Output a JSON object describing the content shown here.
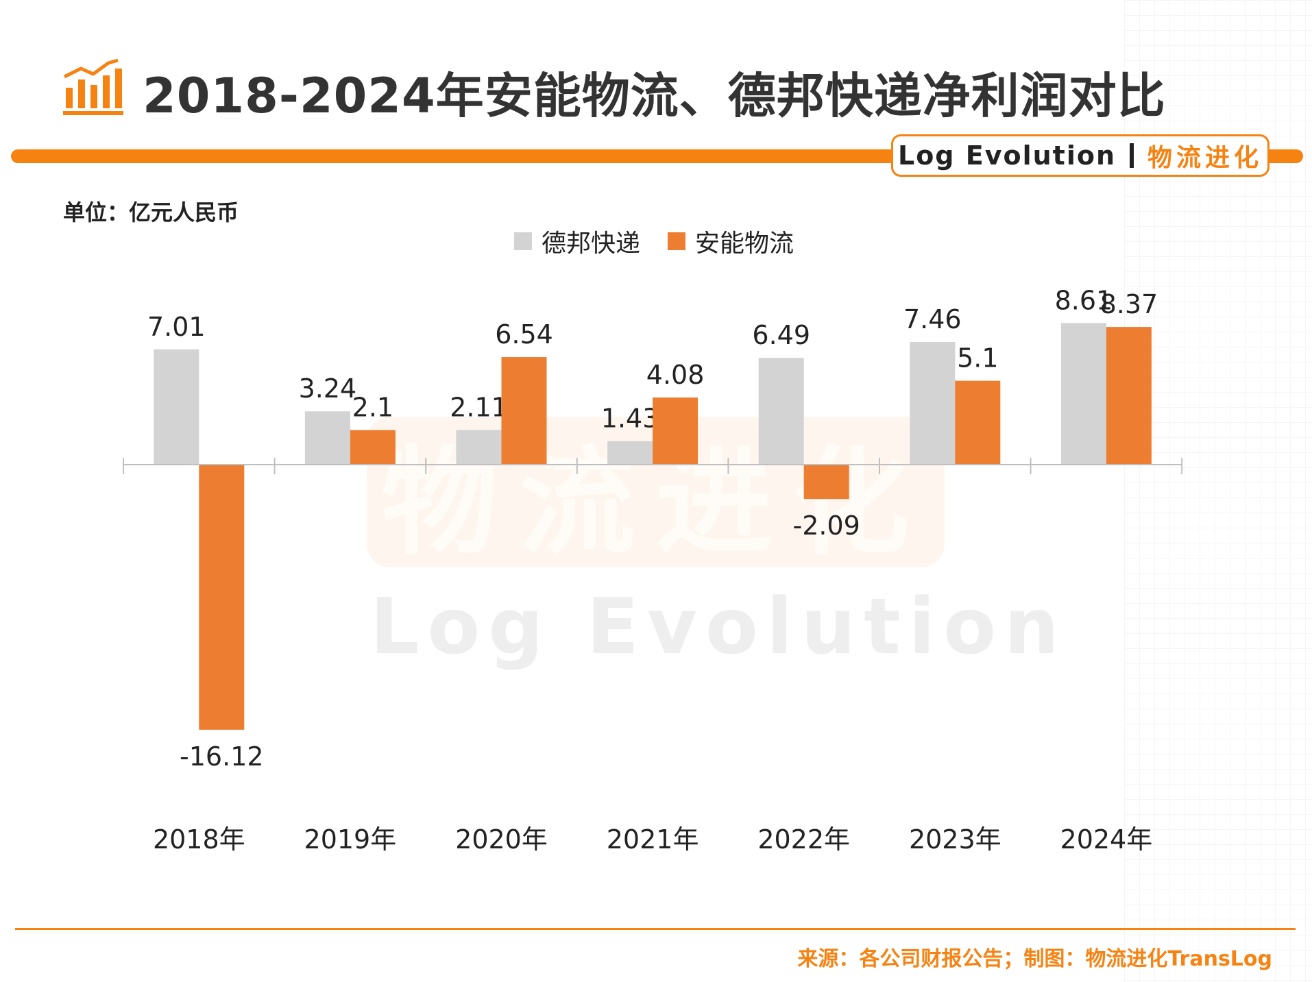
{
  "title": "2018-2024年安能物流、德邦快递净利润对比",
  "brand": {
    "en": "Log Evolution",
    "cn": "物流进化"
  },
  "unit_label": "单位：亿元人民币",
  "source": "来源：各公司财报公告；制图：物流进化TransLog",
  "watermark": {
    "cn": "物流进化",
    "en": "Log Evolution"
  },
  "colors": {
    "accent": "#f68212",
    "debang": "#d3d3d3",
    "anneng": "#ed7d31"
  },
  "chart_data": {
    "type": "bar",
    "categories": [
      "2018年",
      "2019年",
      "2020年",
      "2021年",
      "2022年",
      "2023年",
      "2024年"
    ],
    "series": [
      {
        "name": "德邦快递",
        "values": [
          7.01,
          3.24,
          2.11,
          1.43,
          6.49,
          7.46,
          8.61
        ]
      },
      {
        "name": "安能物流",
        "values": [
          -16.12,
          2.1,
          6.54,
          4.08,
          -2.09,
          5.1,
          8.37
        ]
      }
    ],
    "data_labels": [
      [
        "7.01",
        "3.24",
        "2.11",
        "1.43",
        "6.49",
        "7.46",
        "8.61"
      ],
      [
        "-16.12",
        "2.1",
        "6.54",
        "4.08",
        "-2.09",
        "5.1",
        "8.37"
      ]
    ],
    "ylim": [
      -16.12,
      8.61
    ],
    "grid": false,
    "legend_position": "top-center"
  }
}
